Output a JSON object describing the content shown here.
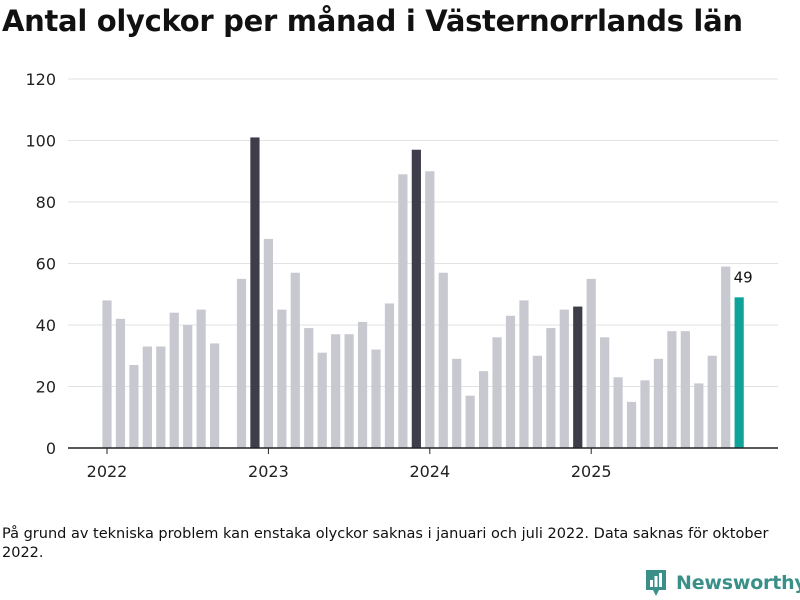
{
  "chart_data": {
    "type": "bar",
    "title": "Antal olyckor per månad i Västernorrlands län",
    "xlabel": "",
    "ylabel": "",
    "ylim": [
      0,
      120
    ],
    "yticks": [
      0,
      20,
      40,
      60,
      80,
      100,
      120
    ],
    "xtick_labels": [
      "2022",
      "2023",
      "2024",
      "2025"
    ],
    "categories": [
      "2022-01",
      "2022-02",
      "2022-03",
      "2022-04",
      "2022-05",
      "2022-06",
      "2022-07",
      "2022-08",
      "2022-09",
      "2022-10",
      "2022-11",
      "2022-12",
      "2023-01",
      "2023-02",
      "2023-03",
      "2023-04",
      "2023-05",
      "2023-06",
      "2023-07",
      "2023-08",
      "2023-09",
      "2023-10",
      "2023-11",
      "2023-12",
      "2024-01",
      "2024-02",
      "2024-03",
      "2024-04",
      "2024-05",
      "2024-06",
      "2024-07",
      "2024-08",
      "2024-09",
      "2024-10",
      "2024-11",
      "2024-12",
      "2025-01",
      "2025-02",
      "2025-03",
      "2025-04",
      "2025-05",
      "2025-06",
      "2025-07",
      "2025-08",
      "2025-09",
      "2025-10",
      "2025-11",
      "2025-12"
    ],
    "values": [
      48,
      42,
      27,
      33,
      33,
      44,
      40,
      45,
      34,
      null,
      55,
      101,
      68,
      45,
      57,
      39,
      31,
      37,
      37,
      41,
      32,
      47,
      89,
      97,
      90,
      57,
      29,
      17,
      25,
      36,
      43,
      48,
      30,
      39,
      45,
      46,
      55,
      36,
      23,
      15,
      22,
      29,
      38,
      38,
      21,
      30,
      59,
      49
    ],
    "highlight": {
      "december": [
        11,
        23,
        35
      ],
      "latest": 47
    },
    "data_label": {
      "index": 47,
      "text": "49"
    },
    "colors": {
      "default": "#c8c8d0",
      "december": "#3e3d4a",
      "latest": "#10a39a",
      "grid": "#e2e2e2",
      "axis": "#222222"
    }
  },
  "footnote": "På grund av tekniska problem kan enstaka olyckor saknas i januari och juli 2022. Data saknas för oktober 2022.",
  "brand": {
    "name": "Newsworthy",
    "color": "#3a8f88"
  }
}
